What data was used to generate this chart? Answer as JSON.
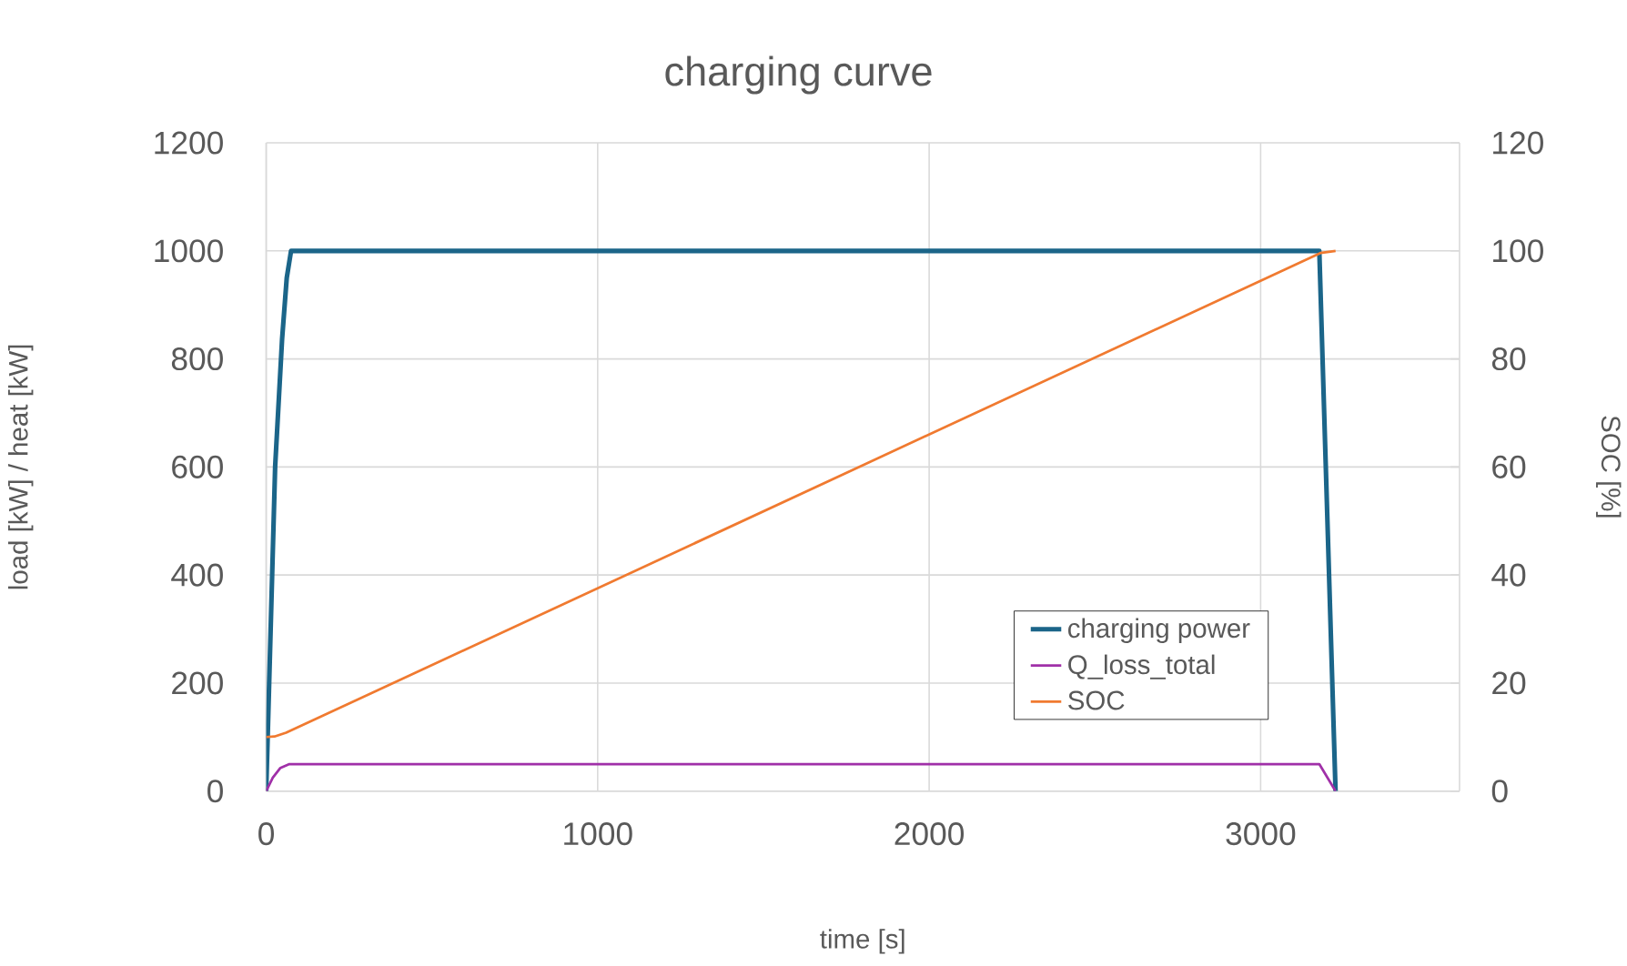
{
  "chart_data": {
    "type": "line",
    "title": "charging curve",
    "xlabel": "time [s]",
    "ylabel": "load [kW] / heat [kW]",
    "y2label": "SOC [%]",
    "xlim": [
      0,
      3600
    ],
    "xticks": [
      0,
      1000,
      2000,
      3000
    ],
    "ylim": [
      0,
      1200
    ],
    "yticks": [
      0,
      200,
      400,
      600,
      800,
      1000,
      1200
    ],
    "y2lim": [
      0,
      120
    ],
    "y2ticks": [
      0,
      20,
      40,
      60,
      80,
      100,
      120
    ],
    "grid": true,
    "legend": "bottom right",
    "marker": "none",
    "line_style": "solid",
    "series": [
      {
        "name": "charging power",
        "color": "#1b6589",
        "x": [
          0,
          9,
          27,
          48,
          62,
          75,
          3177,
          3226
        ],
        "values": [
          0,
          200,
          600,
          837,
          950,
          1000,
          1000,
          0
        ]
      },
      {
        "name": "Q_loss_total",
        "color": "#a030a8",
        "x": [
          0,
          20,
          43,
          70,
          3177,
          3226
        ],
        "values": [
          0,
          25,
          43,
          50,
          50,
          0
        ]
      },
      {
        "name": "SOC",
        "color": "#f07a30",
        "axis": "y2",
        "x": [
          0,
          25,
          60,
          3180,
          3226
        ],
        "values": [
          10,
          10.1,
          10.8,
          99.6,
          100
        ]
      }
    ]
  }
}
